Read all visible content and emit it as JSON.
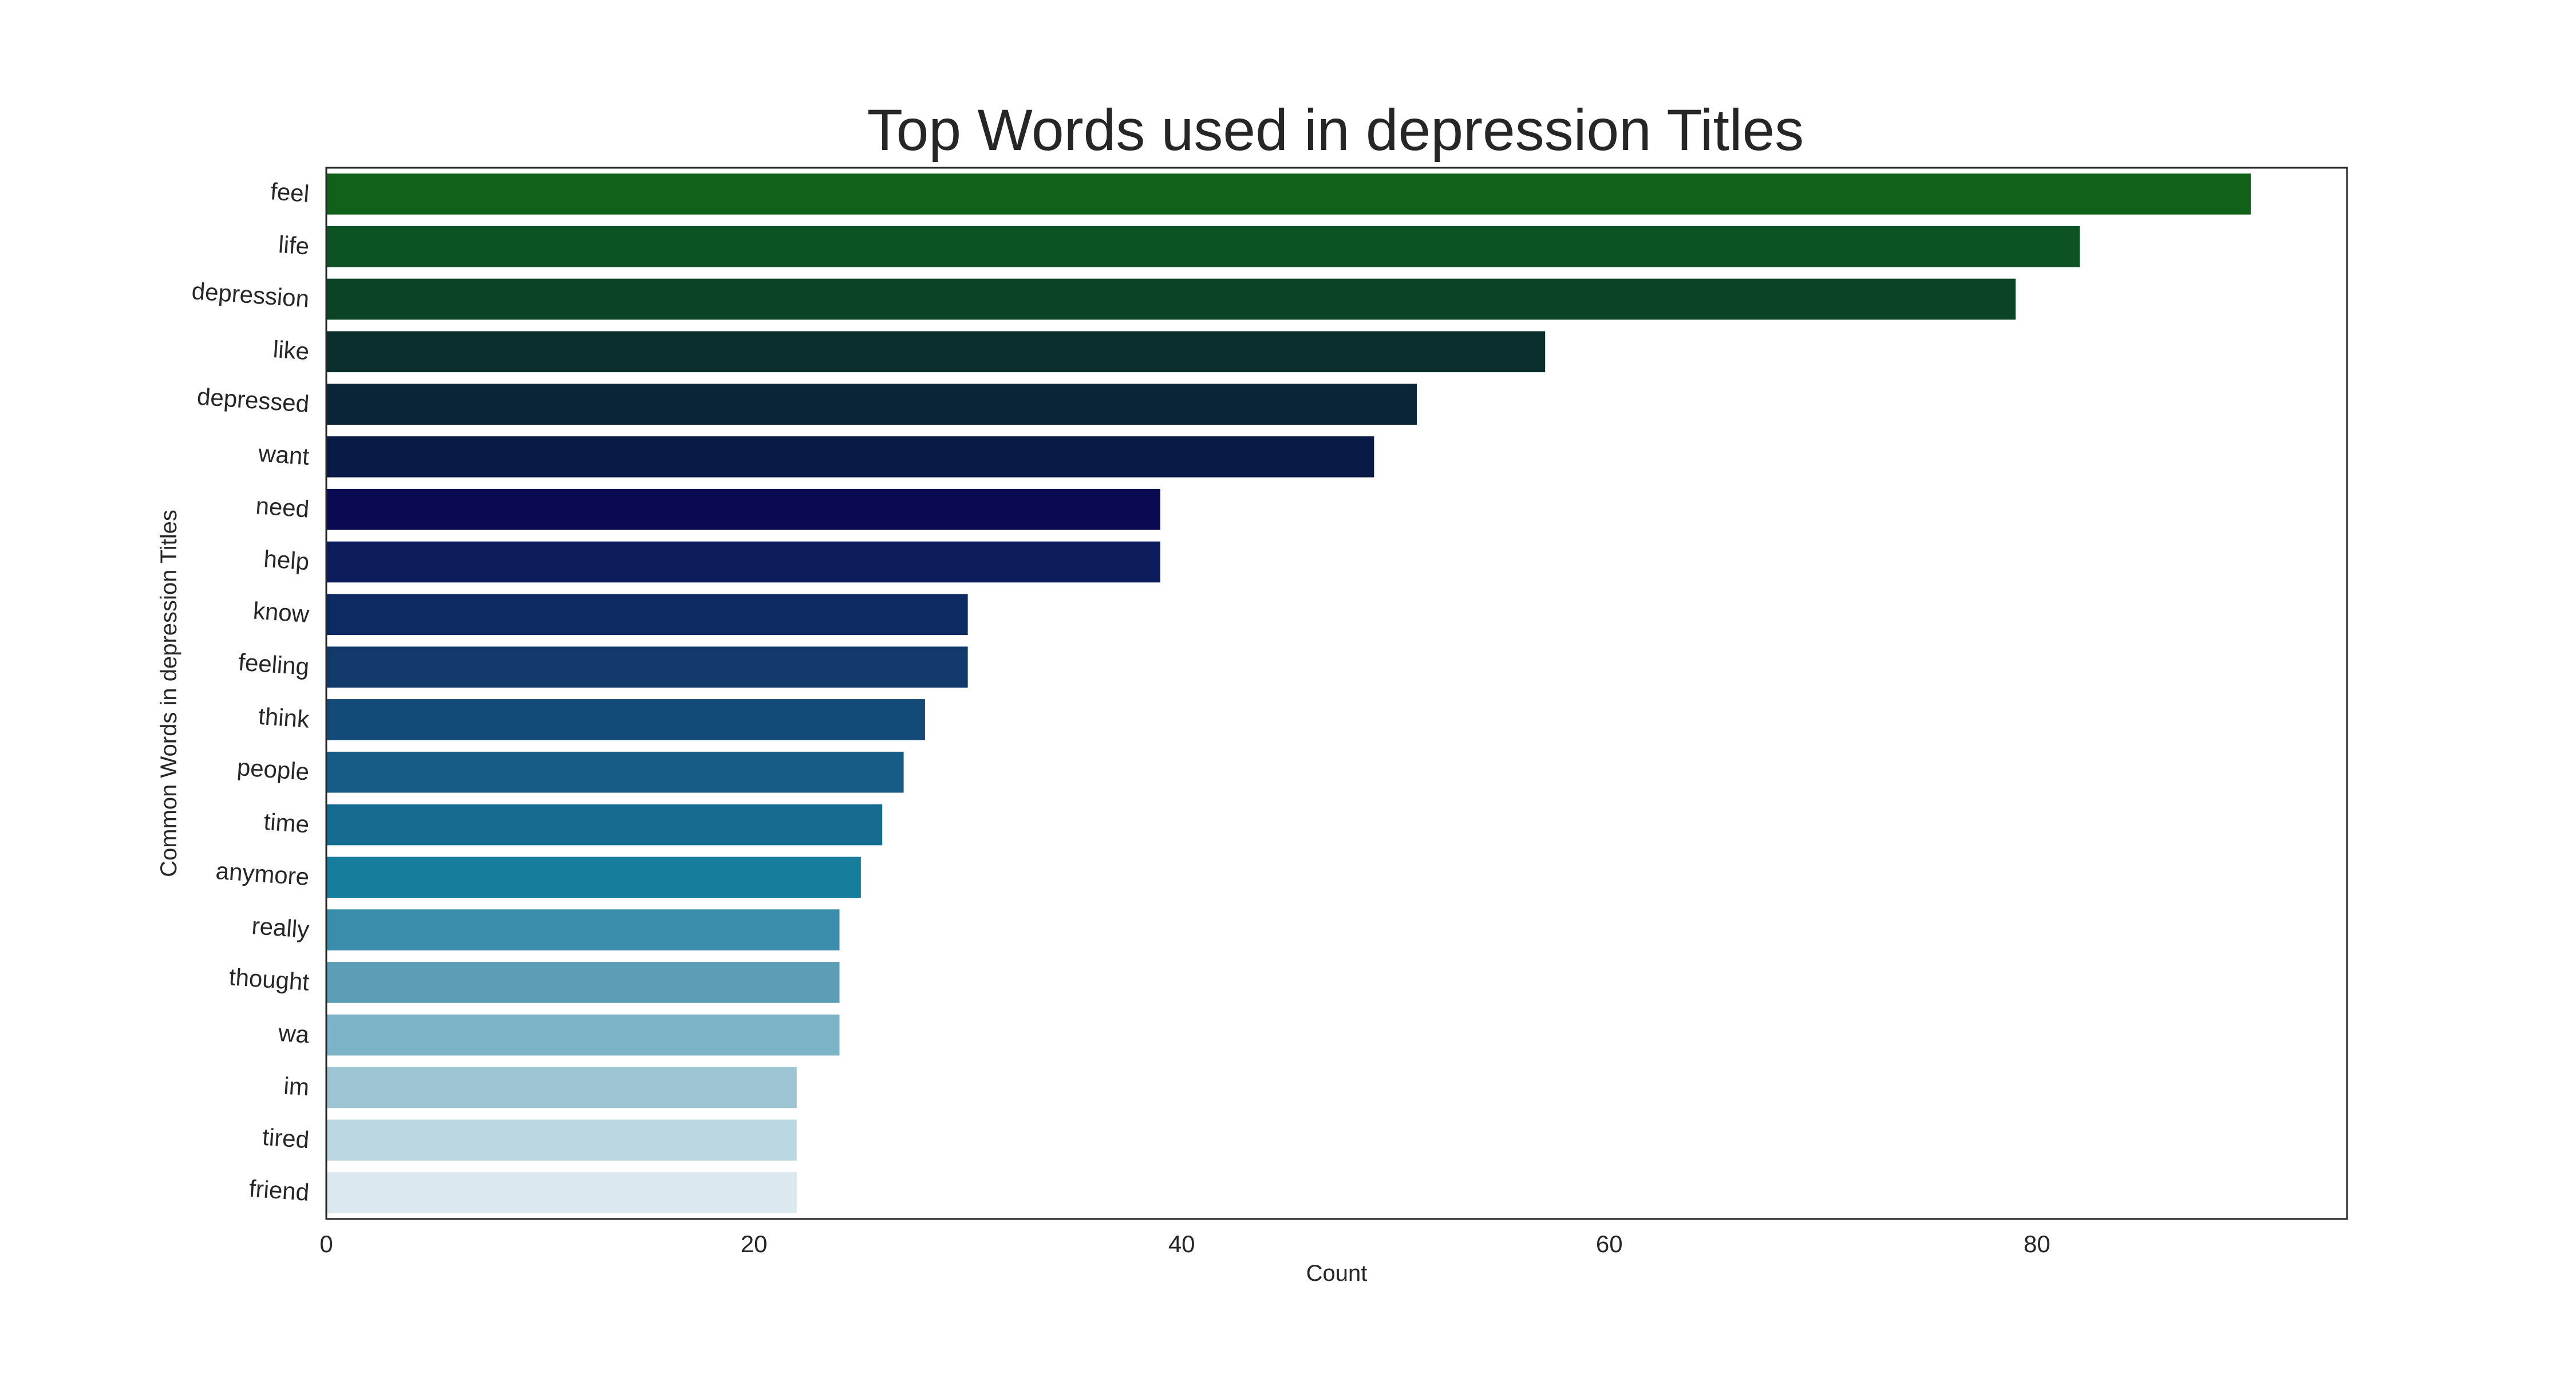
{
  "chart_data": {
    "type": "bar",
    "orientation": "horizontal",
    "title": "Top Words used in depression Titles",
    "xlabel": "Count",
    "ylabel": "Common Words in depression Titles",
    "xlim": [
      0,
      94.5
    ],
    "xticks": [
      0,
      20,
      40,
      60,
      80
    ],
    "grid": false,
    "legend": "none",
    "categories": [
      "feel",
      "life",
      "depression",
      "like",
      "depressed",
      "want",
      "need",
      "help",
      "know",
      "feeling",
      "think",
      "people",
      "time",
      "anymore",
      "really",
      "thought",
      "wa",
      "im",
      "tired",
      "friend"
    ],
    "values": [
      90,
      82,
      79,
      57,
      51,
      49,
      39,
      39,
      30,
      30,
      28,
      27,
      26,
      25,
      24,
      24,
      24,
      22,
      22,
      22
    ],
    "colors": [
      "#11611b",
      "#0d5222",
      "#0b4325",
      "#0a2e2b",
      "#0a2537",
      "#0a1a46",
      "#0a0a52",
      "#0c1c5c",
      "#0e2a62",
      "#123b6c",
      "#144a78",
      "#155c86",
      "#166b90",
      "#167d9d",
      "#3a8eab",
      "#5c9eb6",
      "#7db3c7",
      "#9dc5d4",
      "#bbd8e2",
      "#dbe8ef"
    ]
  }
}
